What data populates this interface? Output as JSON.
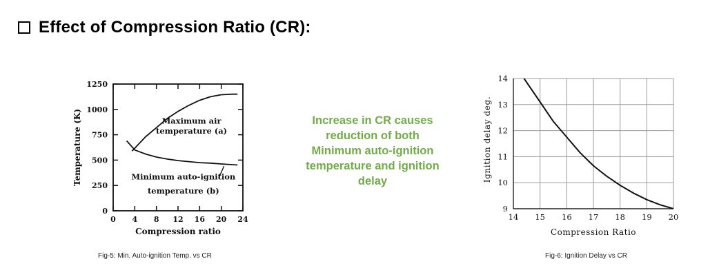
{
  "heading": {
    "title": "Effect of Compression Ratio (CR):"
  },
  "middle": {
    "lines": [
      "Increase in CR causes",
      "reduction of both",
      "Minimum auto-ignition",
      "temperature and ignition",
      "delay"
    ],
    "color": "#70ad47"
  },
  "chart_data": [
    {
      "type": "line",
      "xlabel": "Compression ratio",
      "ylabel": "Temperature (K)",
      "xlim": [
        0,
        24
      ],
      "ylim": [
        0,
        1250
      ],
      "xticks": [
        0,
        4,
        8,
        12,
        16,
        20,
        24
      ],
      "yticks": [
        0,
        250,
        500,
        750,
        1000,
        1250
      ],
      "series": [
        {
          "name": "Maximum air temperature (a)",
          "label_lines": [
            "Maximum air",
            "temperature (a)"
          ],
          "x": [
            3.5,
            6,
            8,
            10,
            12,
            14,
            16,
            18,
            20,
            22,
            23
          ],
          "values": [
            590,
            730,
            820,
            910,
            980,
            1040,
            1090,
            1125,
            1145,
            1150,
            1150
          ]
        },
        {
          "name": "Minimum auto-ignition temperature (b)",
          "label_lines": [
            "Minimum auto-ignition",
            "temperature (b)"
          ],
          "x": [
            2.5,
            4,
            6,
            8,
            10,
            12,
            14,
            16,
            18,
            20,
            22,
            23
          ],
          "values": [
            690,
            600,
            560,
            530,
            510,
            495,
            485,
            475,
            470,
            462,
            455,
            452
          ]
        }
      ],
      "caption": "Fig-5: Min. Auto-ignition Temp. vs CR"
    },
    {
      "type": "line",
      "xlabel": "Compression Ratio",
      "ylabel": "Ignition delay deg.",
      "xlim": [
        14,
        20
      ],
      "ylim": [
        9,
        14
      ],
      "xticks": [
        14,
        15,
        16,
        17,
        18,
        19,
        20
      ],
      "yticks": [
        9,
        10,
        11,
        12,
        13,
        14
      ],
      "grid": true,
      "series": [
        {
          "name": "Ignition delay",
          "x": [
            14.4,
            15,
            15.5,
            16,
            16.5,
            17,
            17.5,
            18,
            18.5,
            19,
            19.5,
            20
          ],
          "values": [
            14,
            13.1,
            12.35,
            11.75,
            11.15,
            10.65,
            10.25,
            9.9,
            9.6,
            9.35,
            9.15,
            9
          ]
        }
      ],
      "caption": "Fig-6: Ignition Delay vs CR"
    }
  ]
}
